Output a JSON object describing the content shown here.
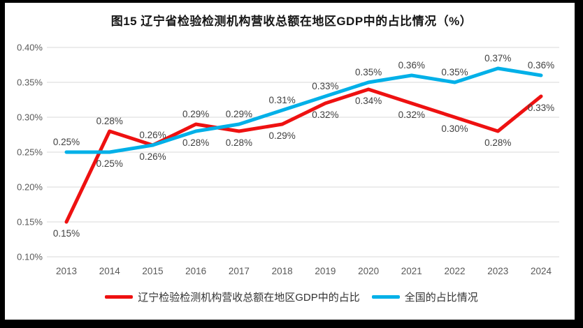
{
  "chart_data": {
    "type": "line",
    "title": "图15 辽宁省检验检测机构营收总额在地区GDP中的占比情况（%）",
    "categories": [
      "2013",
      "2014",
      "2015",
      "2016",
      "2017",
      "2018",
      "2019",
      "2020",
      "2021",
      "2022",
      "2023",
      "2024"
    ],
    "series": [
      {
        "name": "辽宁检验检测机构营收总额在地区GDP中的占比",
        "color": "#ee1111",
        "values": [
          0.15,
          0.28,
          0.26,
          0.29,
          0.28,
          0.29,
          0.32,
          0.34,
          0.32,
          0.3,
          0.28,
          0.33
        ],
        "labels": [
          "0.15%",
          "0.28%",
          "0.26%",
          "0.29%",
          "0.28%",
          "0.29%",
          "0.32%",
          "0.34%",
          "0.32%",
          "0.30%",
          "0.28%",
          "0.33%"
        ]
      },
      {
        "name": "全国的占比情况",
        "color": "#00b0e8",
        "values": [
          0.25,
          0.25,
          0.26,
          0.28,
          0.29,
          0.31,
          0.33,
          0.35,
          0.36,
          0.35,
          0.37,
          0.36
        ],
        "labels": [
          "0.25%",
          "0.25%",
          "0.26%",
          "0.28%",
          "0.29%",
          "0.31%",
          "0.33%",
          "0.35%",
          "0.36%",
          "0.35%",
          "0.37%",
          "0.36%"
        ]
      }
    ],
    "xlabel": "",
    "ylabel": "",
    "ylim": [
      0.1,
      0.4
    ],
    "ytick_values": [
      0.4,
      0.35,
      0.3,
      0.25,
      0.2,
      0.15,
      0.1
    ],
    "yticks": [
      "0.40%",
      "0.35%",
      "0.30%",
      "0.25%",
      "0.20%",
      "0.15%",
      "0.10%"
    ],
    "grid": true,
    "data_labels": true,
    "legend_position": "bottom",
    "colors": {
      "grid": "#d9d9d9",
      "axis_text": "#595959",
      "label_text": "#404040",
      "frame": "#000000",
      "background": "#ffffff"
    }
  }
}
